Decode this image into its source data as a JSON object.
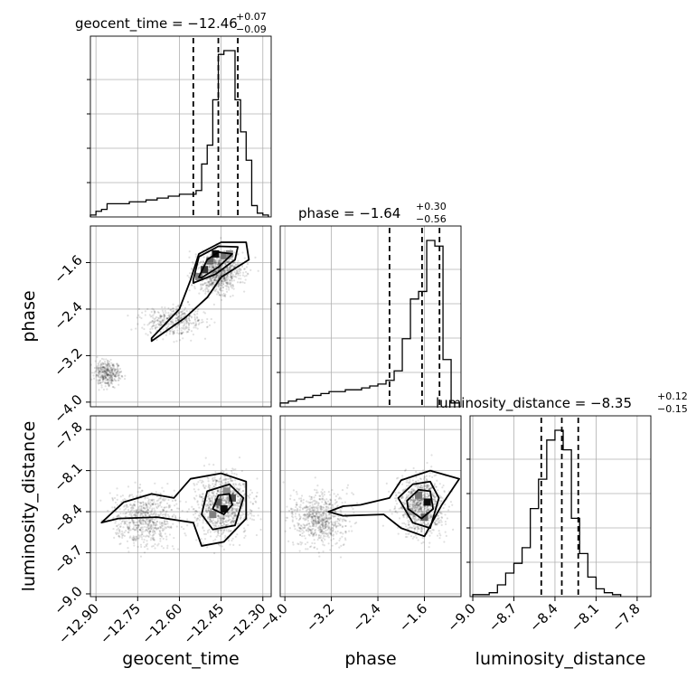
{
  "chart_data": {
    "type": "corner",
    "parameters": [
      {
        "key": "geocent_time",
        "axis_label": "geocent_time",
        "title_main": "geocent_time = −12.46",
        "title_sup": "+0.07",
        "title_sub": "−0.09",
        "median": -12.46,
        "quantiles": [
          -12.55,
          -12.46,
          -12.39
        ],
        "range": [
          -12.92,
          -12.27
        ],
        "ticks": [
          -12.9,
          -12.75,
          -12.6,
          -12.45,
          -12.3
        ],
        "tick_labels": [
          "−12.90",
          "−12.75",
          "−12.60",
          "−12.45",
          "−12.30"
        ],
        "hist_bins": [
          -12.92,
          -12.9,
          -12.88,
          -12.86,
          -12.84,
          -12.82,
          -12.8,
          -12.78,
          -12.76,
          -12.74,
          -12.72,
          -12.7,
          -12.68,
          -12.66,
          -12.64,
          -12.62,
          -12.6,
          -12.58,
          -12.56,
          -12.54,
          -12.52,
          -12.5,
          -12.48,
          -12.46,
          -12.44,
          -12.42,
          -12.4,
          -12.38,
          -12.36,
          -12.34,
          -12.32,
          -12.3,
          -12.28
        ],
        "hist_counts": [
          0.01,
          0.03,
          0.04,
          0.07,
          0.07,
          0.07,
          0.07,
          0.08,
          0.08,
          0.08,
          0.09,
          0.09,
          0.1,
          0.1,
          0.11,
          0.11,
          0.12,
          0.12,
          0.12,
          0.14,
          0.28,
          0.38,
          0.62,
          0.86,
          0.88,
          0.88,
          0.62,
          0.45,
          0.3,
          0.06,
          0.02,
          0.01
        ]
      },
      {
        "key": "phase",
        "axis_label": "phase",
        "title_main": "phase = −1.64",
        "title_sup": "+0.30",
        "title_sub": "−0.56",
        "median": -1.64,
        "quantiles": [
          -2.2,
          -1.64,
          -1.34
        ],
        "range": [
          -4.08,
          -0.97
        ],
        "ticks": [
          -4.0,
          -3.2,
          -2.4,
          -1.6
        ],
        "tick_labels": [
          "−4.0",
          "−3.2",
          "−2.4",
          "−1.6"
        ],
        "hist_bins": [
          -4.08,
          -3.94,
          -3.8,
          -3.66,
          -3.52,
          -3.38,
          -3.24,
          -3.1,
          -2.96,
          -2.82,
          -2.68,
          -2.54,
          -2.4,
          -2.26,
          -2.12,
          -1.98,
          -1.84,
          -1.7,
          -1.56,
          -1.42,
          -1.28,
          -1.14,
          -1.0
        ],
        "hist_counts": [
          0.02,
          0.03,
          0.04,
          0.05,
          0.06,
          0.07,
          0.08,
          0.08,
          0.09,
          0.09,
          0.1,
          0.11,
          0.12,
          0.14,
          0.19,
          0.36,
          0.57,
          0.61,
          0.88,
          0.85,
          0.25,
          0.02
        ]
      },
      {
        "key": "luminosity_distance",
        "axis_label": "luminosity_distance",
        "title_main": "luminosity_distance = −8.35",
        "title_sup": "+0.12",
        "title_sub": "−0.15",
        "median": -8.35,
        "quantiles": [
          -8.5,
          -8.35,
          -8.23
        ],
        "range": [
          -9.02,
          -7.7
        ],
        "ticks": [
          -9.0,
          -8.7,
          -8.4,
          -8.1,
          -7.8
        ],
        "tick_labels": [
          "−9.0",
          "−8.7",
          "−8.4",
          "−8.1",
          "−7.8"
        ],
        "hist_bins": [
          -9.0,
          -8.94,
          -8.88,
          -8.82,
          -8.76,
          -8.7,
          -8.64,
          -8.58,
          -8.52,
          -8.46,
          -8.4,
          -8.34,
          -8.28,
          -8.22,
          -8.16,
          -8.1,
          -8.04,
          -7.98,
          -7.92
        ],
        "hist_counts": [
          0.01,
          0.01,
          0.02,
          0.06,
          0.12,
          0.17,
          0.25,
          0.45,
          0.6,
          0.8,
          0.85,
          0.75,
          0.4,
          0.22,
          0.1,
          0.04,
          0.02,
          0.01
        ]
      }
    ],
    "pairs": [
      {
        "x": "geocent_time",
        "y": "phase",
        "scatter_clusters": [
          {
            "cx": -12.86,
            "cy": -3.5,
            "sx": 0.04,
            "sy": 0.18,
            "n": 380,
            "rot": -0.7
          },
          {
            "cx": -12.62,
            "cy": -2.6,
            "sx": 0.09,
            "sy": 0.22,
            "n": 420,
            "rot": 0.75
          },
          {
            "cx": -12.46,
            "cy": -1.75,
            "sx": 0.07,
            "sy": 0.3,
            "n": 900,
            "rot": 0.6
          }
        ],
        "density_cells": [
          {
            "x": -12.51,
            "y": -1.72,
            "v": 0.8
          },
          {
            "x": -12.49,
            "y": -1.57,
            "v": 0.6
          },
          {
            "x": -12.47,
            "y": -1.45,
            "v": 0.95
          },
          {
            "x": -12.44,
            "y": -1.48,
            "v": 0.55
          },
          {
            "x": -12.53,
            "y": -1.84,
            "v": 0.5
          },
          {
            "x": -12.42,
            "y": -1.45,
            "v": 0.45
          }
        ],
        "contour_levels": [
          [
            [
              -12.7,
              -2.9
            ],
            [
              -12.6,
              -2.4
            ],
            [
              -12.56,
              -1.9
            ],
            [
              -12.53,
              -1.45
            ],
            [
              -12.45,
              -1.25
            ],
            [
              -12.36,
              -1.25
            ],
            [
              -12.35,
              -1.55
            ],
            [
              -12.45,
              -1.85
            ],
            [
              -12.5,
              -2.2
            ],
            [
              -12.58,
              -2.55
            ],
            [
              -12.7,
              -2.95
            ]
          ],
          [
            [
              -12.55,
              -1.9
            ],
            [
              -12.53,
              -1.5
            ],
            [
              -12.46,
              -1.32
            ],
            [
              -12.39,
              -1.33
            ],
            [
              -12.4,
              -1.55
            ],
            [
              -12.47,
              -1.8
            ],
            [
              -12.55,
              -1.95
            ]
          ],
          [
            [
              -12.53,
              -1.85
            ],
            [
              -12.5,
              -1.55
            ],
            [
              -12.46,
              -1.42
            ],
            [
              -12.41,
              -1.45
            ],
            [
              -12.46,
              -1.68
            ],
            [
              -12.52,
              -1.86
            ]
          ]
        ]
      },
      {
        "x": "geocent_time",
        "y": "luminosity_distance",
        "scatter_clusters": [
          {
            "cx": -12.72,
            "cy": -8.45,
            "sx": 0.1,
            "sy": 0.17,
            "n": 700,
            "rot": 0.1
          },
          {
            "cx": -12.44,
            "cy": -8.35,
            "sx": 0.08,
            "sy": 0.2,
            "n": 1000,
            "rot": 0.25
          }
        ],
        "density_cells": [
          {
            "x": -12.46,
            "y": -8.33,
            "v": 0.65
          },
          {
            "x": -12.44,
            "y": -8.38,
            "v": 0.95
          },
          {
            "x": -12.41,
            "y": -8.3,
            "v": 0.7
          },
          {
            "x": -12.48,
            "y": -8.42,
            "v": 0.5
          },
          {
            "x": -12.43,
            "y": -8.25,
            "v": 0.45
          }
        ],
        "contour_levels": [
          [
            [
              -12.88,
              -8.48
            ],
            [
              -12.8,
              -8.33
            ],
            [
              -12.7,
              -8.27
            ],
            [
              -12.62,
              -8.3
            ],
            [
              -12.56,
              -8.16
            ],
            [
              -12.45,
              -8.12
            ],
            [
              -12.36,
              -8.18
            ],
            [
              -12.36,
              -8.45
            ],
            [
              -12.44,
              -8.62
            ],
            [
              -12.52,
              -8.65
            ],
            [
              -12.55,
              -8.48
            ],
            [
              -12.68,
              -8.44
            ],
            [
              -12.82,
              -8.45
            ],
            [
              -12.88,
              -8.48
            ]
          ],
          [
            [
              -12.52,
              -8.42
            ],
            [
              -12.5,
              -8.25
            ],
            [
              -12.42,
              -8.2
            ],
            [
              -12.37,
              -8.3
            ],
            [
              -12.4,
              -8.5
            ],
            [
              -12.48,
              -8.53
            ],
            [
              -12.52,
              -8.42
            ]
          ],
          [
            [
              -12.48,
              -8.38
            ],
            [
              -12.46,
              -8.28
            ],
            [
              -12.42,
              -8.27
            ],
            [
              -12.41,
              -8.35
            ],
            [
              -12.44,
              -8.42
            ],
            [
              -12.48,
              -8.38
            ]
          ]
        ]
      },
      {
        "x": "phase",
        "y": "luminosity_distance",
        "scatter_clusters": [
          {
            "cx": -3.4,
            "cy": -8.45,
            "sx": 0.4,
            "sy": 0.16,
            "n": 700,
            "rot": 0.0
          },
          {
            "cx": -1.65,
            "cy": -8.35,
            "sx": 0.35,
            "sy": 0.18,
            "n": 900,
            "rot": 0.0
          }
        ],
        "density_cells": [
          {
            "x": -1.55,
            "y": -8.33,
            "v": 0.95
          },
          {
            "x": -1.7,
            "y": -8.28,
            "v": 0.55
          },
          {
            "x": -1.6,
            "y": -8.44,
            "v": 0.6
          },
          {
            "x": -1.85,
            "y": -8.4,
            "v": 0.35
          }
        ],
        "contour_levels": [
          [
            [
              -3.25,
              -8.4
            ],
            [
              -3.0,
              -8.36
            ],
            [
              -2.7,
              -8.35
            ],
            [
              -2.2,
              -8.3
            ],
            [
              -2.0,
              -8.17
            ],
            [
              -1.5,
              -8.1
            ],
            [
              -1.0,
              -8.16
            ],
            [
              -1.3,
              -8.35
            ],
            [
              -1.6,
              -8.58
            ],
            [
              -2.0,
              -8.52
            ],
            [
              -2.3,
              -8.42
            ],
            [
              -3.0,
              -8.43
            ],
            [
              -3.25,
              -8.4
            ]
          ],
          [
            [
              -2.05,
              -8.3
            ],
            [
              -1.8,
              -8.2
            ],
            [
              -1.5,
              -8.18
            ],
            [
              -1.35,
              -8.3
            ],
            [
              -1.5,
              -8.52
            ],
            [
              -1.8,
              -8.48
            ],
            [
              -2.05,
              -8.3
            ]
          ],
          [
            [
              -1.9,
              -8.32
            ],
            [
              -1.7,
              -8.24
            ],
            [
              -1.5,
              -8.25
            ],
            [
              -1.45,
              -8.38
            ],
            [
              -1.65,
              -8.45
            ],
            [
              -1.88,
              -8.38
            ],
            [
              -1.9,
              -8.32
            ]
          ]
        ]
      }
    ],
    "grid": true
  }
}
